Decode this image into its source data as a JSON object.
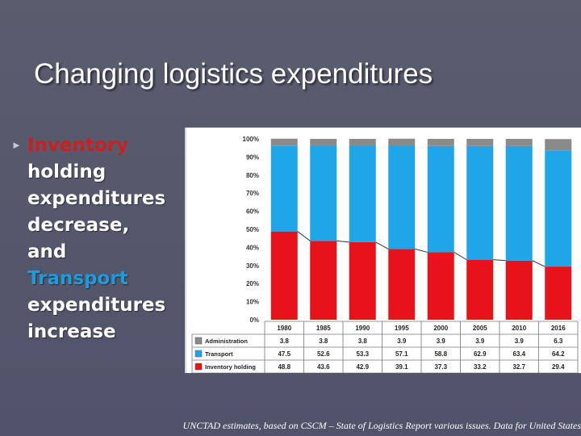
{
  "slide": {
    "title": "Changing logistics expenditures",
    "body_lines": [
      "Inventory",
      "holding",
      "expenditures",
      "decrease,",
      "and",
      "Transport",
      "expenditures",
      "increase"
    ],
    "caption": "UNCTAD estimates, based on CSCM – State of Logistics Report various issues. Data for United States",
    "colors": {
      "inventory": "#e8131a",
      "transport": "#1ea6e8",
      "administration": "#8a8a8a",
      "inventory_highlight": "#cc1f1f",
      "transport_highlight": "#1e9bd8"
    }
  },
  "chart_data": {
    "type": "bar",
    "stacked": true,
    "categories": [
      "1980",
      "1985",
      "1990",
      "1995",
      "2000",
      "2005",
      "2010",
      "2016"
    ],
    "series": [
      {
        "name": "Inventory holding",
        "values": [
          48.8,
          43.6,
          42.9,
          39.1,
          37.3,
          33.2,
          32.7,
          29.4
        ],
        "color": "#e8131a",
        "labels": [
          "48.8",
          "43.6",
          "42.9",
          "39.1",
          "37.3",
          "33.2",
          "32.7",
          "29.4"
        ]
      },
      {
        "name": "Transport",
        "values": [
          47.5,
          52.6,
          53.3,
          57.1,
          58.8,
          62.9,
          63.4,
          64.2
        ],
        "color": "#1ea6e8",
        "labels": [
          "47.5",
          "52.6",
          "53.3",
          "57.1",
          "58.8",
          "62.9",
          "63.4",
          "64.2"
        ]
      },
      {
        "name": "Administration",
        "values": [
          3.8,
          3.8,
          3.8,
          3.9,
          3.9,
          3.9,
          3.9,
          6.3
        ],
        "color": "#8a8a8a",
        "labels": [
          "3.8",
          "3.8",
          "3.8",
          "3.9",
          "3.9",
          "3.9",
          "3.9",
          "6.3"
        ]
      }
    ],
    "yticks": [
      "0%",
      "10%",
      "20%",
      "30%",
      "40%",
      "50%",
      "60%",
      "70%",
      "80%",
      "90%",
      "100%"
    ],
    "ylim": [
      0,
      100
    ],
    "grid": false,
    "legend": "table-below",
    "connector_lines": true
  }
}
